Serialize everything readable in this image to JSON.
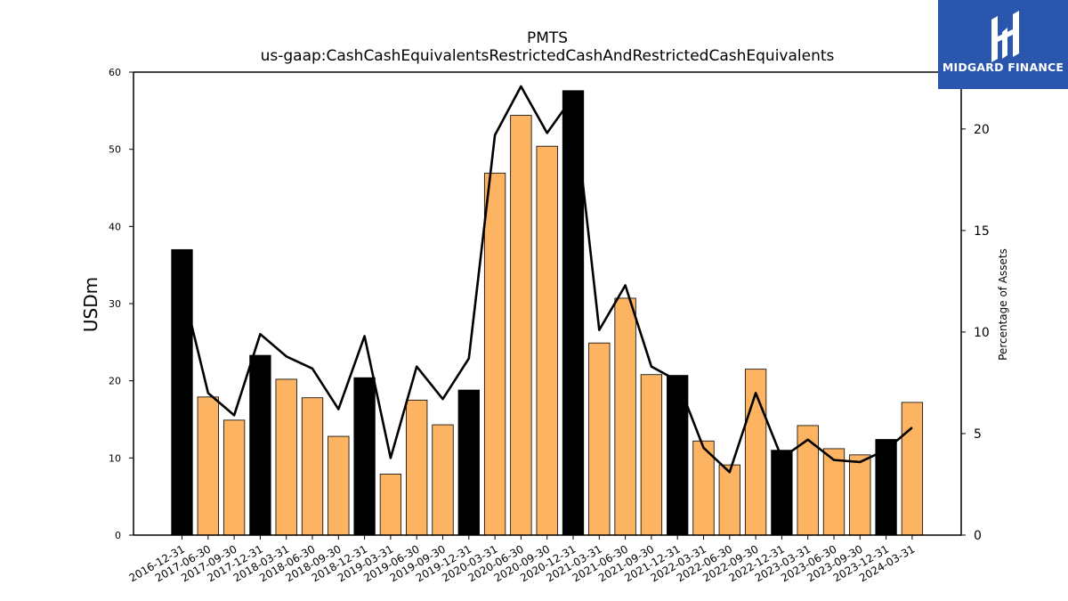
{
  "chart_data": {
    "type": "bar",
    "title": "PMTS",
    "subtitle": "us-gaap:CashCashEquivalentsRestrictedCashAndRestrictedCashEquivalents",
    "ylabel": "USDm",
    "ylabel_right": "Percentage of Assets",
    "ylim": [
      0,
      60
    ],
    "ylim_right": [
      0,
      22.8
    ],
    "yticks": [
      0,
      10,
      20,
      30,
      40,
      50,
      60
    ],
    "yticks_right": [
      0,
      5,
      10,
      15,
      20
    ],
    "grid": false,
    "categories": [
      "2016-12-31",
      "2017-06-30",
      "2017-09-30",
      "2017-12-31",
      "2018-03-31",
      "2018-06-30",
      "2018-09-30",
      "2018-12-31",
      "2019-03-31",
      "2019-06-30",
      "2019-09-30",
      "2019-12-31",
      "2020-03-31",
      "2020-06-30",
      "2020-09-30",
      "2020-12-31",
      "2021-03-31",
      "2021-06-30",
      "2021-09-30",
      "2021-12-31",
      "2022-03-31",
      "2022-06-30",
      "2022-09-30",
      "2022-12-31",
      "2023-03-31",
      "2023-06-30",
      "2023-09-30",
      "2023-12-31",
      "2024-03-31"
    ],
    "series": [
      {
        "kind": "bar",
        "values": [
          37.0,
          17.9,
          14.9,
          23.3,
          20.2,
          17.8,
          12.8,
          20.4,
          7.9,
          17.5,
          14.3,
          18.8,
          46.9,
          54.4,
          50.4,
          57.6,
          24.9,
          30.7,
          20.8,
          20.7,
          12.2,
          9.1,
          21.5,
          11.0,
          14.2,
          11.2,
          10.4,
          12.4,
          17.2
        ],
        "colors": [
          "#000000",
          "#fdb462",
          "#fdb462",
          "#000000",
          "#fdb462",
          "#fdb462",
          "#fdb462",
          "#000000",
          "#fdb462",
          "#fdb462",
          "#fdb462",
          "#000000",
          "#fdb462",
          "#fdb462",
          "#fdb462",
          "#000000",
          "#fdb462",
          "#fdb462",
          "#fdb462",
          "#000000",
          "#fdb462",
          "#fdb462",
          "#fdb462",
          "#000000",
          "#fdb462",
          "#fdb462",
          "#fdb462",
          "#000000",
          "#fdb462"
        ]
      },
      {
        "kind": "line",
        "axis": "right",
        "values": [
          12.3,
          7.0,
          5.9,
          9.9,
          8.8,
          8.2,
          6.2,
          9.8,
          3.8,
          8.3,
          6.7,
          8.7,
          19.7,
          22.1,
          19.8,
          21.6,
          10.1,
          12.3,
          8.3,
          7.6,
          4.3,
          3.1,
          7.0,
          3.8,
          4.7,
          3.7,
          3.6,
          4.2,
          5.3
        ],
        "color": "#000000"
      }
    ]
  },
  "logo": {
    "text": "MIDGARD FINANCE",
    "bg_color": "#2a56ad"
  }
}
